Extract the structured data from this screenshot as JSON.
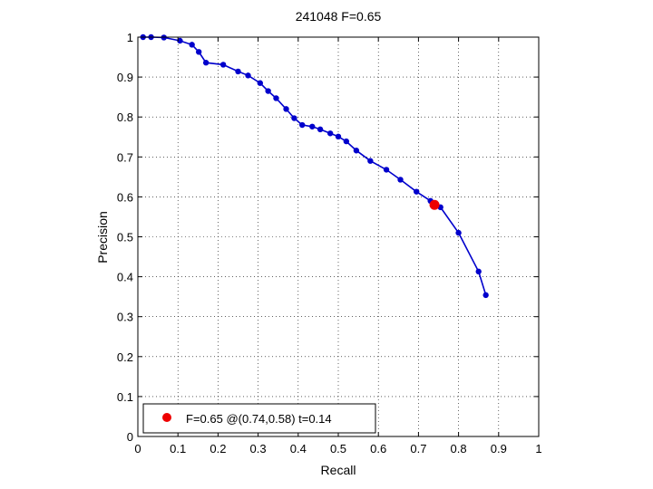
{
  "chart_data": {
    "type": "line",
    "title": "241048 F=0.65",
    "xlabel": "Recall",
    "ylabel": "Precision",
    "xlim": [
      0,
      1
    ],
    "ylim": [
      0,
      1
    ],
    "xticks": [
      "0",
      "0.1",
      "0.2",
      "0.3",
      "0.4",
      "0.5",
      "0.6",
      "0.7",
      "0.8",
      "0.9",
      "1"
    ],
    "yticks": [
      "0",
      "0.1",
      "0.2",
      "0.3",
      "0.4",
      "0.5",
      "0.6",
      "0.7",
      "0.8",
      "0.9",
      "1"
    ],
    "grid": true,
    "legend_placement": "bottom-left",
    "series": [
      {
        "color": "#0000cc",
        "x": [
          0.013,
          0.033,
          0.065,
          0.105,
          0.135,
          0.152,
          0.17,
          0.213,
          0.25,
          0.275,
          0.305,
          0.325,
          0.345,
          0.37,
          0.39,
          0.41,
          0.435,
          0.455,
          0.48,
          0.5,
          0.52,
          0.545,
          0.58,
          0.62,
          0.655,
          0.695,
          0.73,
          0.755,
          0.8,
          0.85,
          0.868
        ],
        "y": [
          1.0,
          1.0,
          0.999,
          0.991,
          0.981,
          0.963,
          0.936,
          0.931,
          0.914,
          0.904,
          0.885,
          0.865,
          0.847,
          0.82,
          0.797,
          0.78,
          0.776,
          0.769,
          0.759,
          0.751,
          0.739,
          0.716,
          0.69,
          0.668,
          0.643,
          0.613,
          0.59,
          0.574,
          0.51,
          0.413,
          0.354
        ]
      }
    ],
    "highlight": {
      "x": 0.74,
      "y": 0.58,
      "color": "#ee0000",
      "label": "F=0.65 @(0.74,0.58) t=0.14"
    }
  }
}
